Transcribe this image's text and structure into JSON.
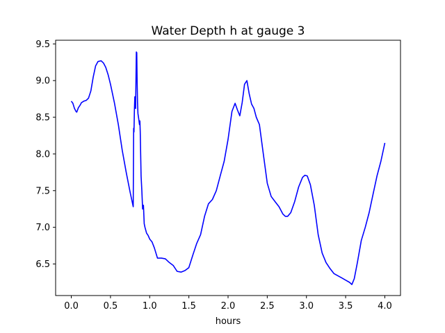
{
  "chart_data": {
    "type": "line",
    "title": "Water Depth h at gauge 3",
    "xlabel": "hours",
    "ylabel": "",
    "xlim": [
      -0.2,
      4.2
    ],
    "ylim": [
      6.07,
      9.55
    ],
    "xticks": [
      0.0,
      0.5,
      1.0,
      1.5,
      2.0,
      2.5,
      3.0,
      3.5,
      4.0
    ],
    "xtick_labels": [
      "0.0",
      "0.5",
      "1.0",
      "1.5",
      "2.0",
      "2.5",
      "3.0",
      "3.5",
      "4.0"
    ],
    "yticks": [
      6.5,
      7.0,
      7.5,
      8.0,
      8.5,
      9.0,
      9.5
    ],
    "ytick_labels": [
      "6.5",
      "7.0",
      "7.5",
      "8.0",
      "8.5",
      "9.0",
      "9.5"
    ],
    "grid": false,
    "color": "#0000ff",
    "series": [
      {
        "x": [
          0.0,
          0.02,
          0.04,
          0.06,
          0.07,
          0.09,
          0.11,
          0.13,
          0.16,
          0.19,
          0.22,
          0.25,
          0.28,
          0.31,
          0.34,
          0.38,
          0.41,
          0.44,
          0.47,
          0.5,
          0.55,
          0.6,
          0.65,
          0.7,
          0.75,
          0.79,
          0.795,
          0.8,
          0.805,
          0.81,
          0.82,
          0.83,
          0.835,
          0.84,
          0.845,
          0.85,
          0.86,
          0.87,
          0.875,
          0.88,
          0.89,
          0.9,
          0.91,
          0.92,
          0.93,
          0.94,
          0.96,
          0.98,
          1.0,
          1.03,
          1.06,
          1.1,
          1.15,
          1.2,
          1.25,
          1.3,
          1.35,
          1.4,
          1.45,
          1.5,
          1.55,
          1.6,
          1.65,
          1.7,
          1.75,
          1.8,
          1.85,
          1.9,
          1.95,
          2.0,
          2.05,
          2.09,
          2.12,
          2.15,
          2.18,
          2.21,
          2.24,
          2.27,
          2.3,
          2.33,
          2.36,
          2.4,
          2.45,
          2.5,
          2.55,
          2.6,
          2.65,
          2.7,
          2.73,
          2.76,
          2.8,
          2.85,
          2.9,
          2.95,
          2.98,
          3.01,
          3.05,
          3.1,
          3.15,
          3.2,
          3.25,
          3.3,
          3.35,
          3.4,
          3.45,
          3.5,
          3.55,
          3.58,
          3.61,
          3.65,
          3.7,
          3.75,
          3.8,
          3.85,
          3.9,
          3.95,
          4.0
        ],
        "y": [
          8.72,
          8.69,
          8.62,
          8.58,
          8.57,
          8.63,
          8.66,
          8.7,
          8.72,
          8.73,
          8.76,
          8.86,
          9.05,
          9.2,
          9.26,
          9.27,
          9.24,
          9.18,
          9.08,
          8.95,
          8.7,
          8.4,
          8.05,
          7.75,
          7.48,
          7.28,
          8.35,
          8.3,
          8.6,
          8.78,
          8.62,
          9.39,
          9.38,
          9.0,
          8.7,
          8.55,
          8.48,
          8.4,
          8.45,
          8.3,
          7.7,
          7.5,
          7.25,
          7.3,
          7.05,
          7.0,
          6.92,
          6.89,
          6.84,
          6.8,
          6.72,
          6.58,
          6.58,
          6.57,
          6.52,
          6.48,
          6.4,
          6.39,
          6.41,
          6.45,
          6.62,
          6.78,
          6.9,
          7.15,
          7.32,
          7.38,
          7.5,
          7.7,
          7.9,
          8.2,
          8.58,
          8.69,
          8.6,
          8.52,
          8.7,
          8.95,
          9.0,
          8.82,
          8.68,
          8.62,
          8.5,
          8.4,
          8.0,
          7.6,
          7.42,
          7.35,
          7.28,
          7.18,
          7.15,
          7.15,
          7.2,
          7.35,
          7.55,
          7.68,
          7.71,
          7.7,
          7.58,
          7.3,
          6.9,
          6.65,
          6.52,
          6.44,
          6.37,
          6.34,
          6.31,
          6.28,
          6.25,
          6.22,
          6.3,
          6.52,
          6.82,
          7.0,
          7.2,
          7.45,
          7.7,
          7.9,
          8.15
        ]
      }
    ]
  }
}
